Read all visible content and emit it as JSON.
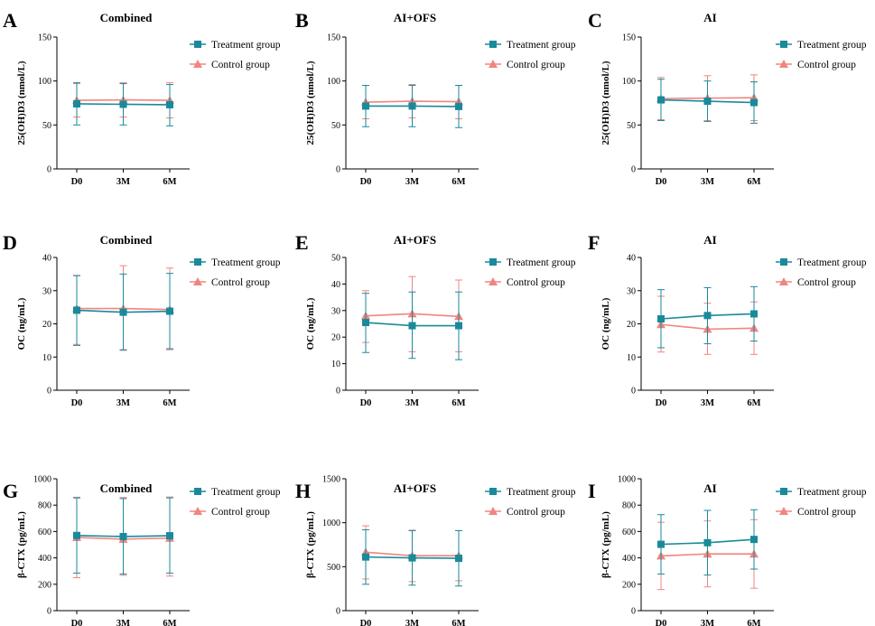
{
  "colors": {
    "treatment": "#1a8a9a",
    "control": "#f08580",
    "axis": "#000000"
  },
  "legend": {
    "treatment": "Treatment group",
    "control": "Control group"
  },
  "chart_data": [
    {
      "letter": "A",
      "title": "Combined",
      "type": "line",
      "categories": [
        "D0",
        "3M",
        "6M"
      ],
      "ylabel": "25(OH)D3 (nmol/L)",
      "ylim": [
        0,
        150
      ],
      "yticks": [
        "0",
        "50",
        "100",
        "150"
      ],
      "series": [
        {
          "name": "Treatment group",
          "values": [
            74,
            73.5,
            73
          ],
          "err_low": [
            50,
            50,
            49
          ],
          "err_high": [
            98,
            97,
            96
          ]
        },
        {
          "name": "Control group",
          "values": [
            78,
            78.5,
            78
          ],
          "err_low": [
            59,
            59,
            58
          ],
          "err_high": [
            97,
            98,
            98
          ]
        }
      ]
    },
    {
      "letter": "B",
      "title": "AI+OFS",
      "type": "line",
      "categories": [
        "D0",
        "3M",
        "6M"
      ],
      "ylabel": "25(OH)D3 (nmol/L)",
      "ylim": [
        0,
        150
      ],
      "yticks": [
        "0",
        "50",
        "100",
        "150"
      ],
      "series": [
        {
          "name": "Treatment group",
          "values": [
            71.5,
            71.5,
            71
          ],
          "err_low": [
            48,
            48,
            47
          ],
          "err_high": [
            95,
            95,
            95
          ]
        },
        {
          "name": "Control group",
          "values": [
            76,
            77,
            76.5
          ],
          "err_low": [
            57,
            58,
            57
          ],
          "err_high": [
            95,
            96,
            95
          ]
        }
      ]
    },
    {
      "letter": "C",
      "title": "AI",
      "type": "line",
      "categories": [
        "D0",
        "3M",
        "6M"
      ],
      "ylabel": "25(OH)D3 (nmol/L)",
      "ylim": [
        0,
        150
      ],
      "yticks": [
        "0",
        "50",
        "100",
        "150"
      ],
      "series": [
        {
          "name": "Treatment group",
          "values": [
            78.5,
            77,
            75.5
          ],
          "err_low": [
            55,
            54,
            52
          ],
          "err_high": [
            102,
            100,
            99
          ]
        },
        {
          "name": "Control group",
          "values": [
            80,
            80.5,
            81
          ],
          "err_low": [
            56,
            55,
            55
          ],
          "err_high": [
            104,
            106,
            107
          ]
        }
      ]
    },
    {
      "letter": "D",
      "title": "Combined",
      "type": "line",
      "categories": [
        "D0",
        "3M",
        "6M"
      ],
      "ylabel": "OC (ng/mL)",
      "ylim": [
        0,
        40
      ],
      "yticks": [
        "0",
        "10",
        "20",
        "30",
        "40"
      ],
      "series": [
        {
          "name": "Treatment group",
          "values": [
            24.1,
            23.5,
            23.8
          ],
          "err_low": [
            13.5,
            12.2,
            12.5
          ],
          "err_high": [
            34.5,
            35,
            35.2
          ]
        },
        {
          "name": "Control group",
          "values": [
            24.6,
            24.6,
            24.3
          ],
          "err_low": [
            13.8,
            12,
            12.2
          ],
          "err_high": [
            34.6,
            37.5,
            36.8
          ]
        }
      ]
    },
    {
      "letter": "E",
      "title": "AI+OFS",
      "type": "line",
      "categories": [
        "D0",
        "3M",
        "6M"
      ],
      "ylabel": "OC (ng/mL)",
      "ylim": [
        0,
        50
      ],
      "yticks": [
        "0",
        "10",
        "20",
        "30",
        "40",
        "50"
      ],
      "series": [
        {
          "name": "Treatment group",
          "values": [
            25.5,
            24.3,
            24.3
          ],
          "err_low": [
            14.2,
            12,
            11.5
          ],
          "err_high": [
            36.5,
            37,
            37
          ]
        },
        {
          "name": "Control group",
          "values": [
            28,
            28.8,
            27.8
          ],
          "err_low": [
            18,
            14.5,
            14.5
          ],
          "err_high": [
            37.5,
            42.8,
            41.5
          ]
        }
      ]
    },
    {
      "letter": "F",
      "title": "AI",
      "type": "line",
      "categories": [
        "D0",
        "3M",
        "6M"
      ],
      "ylabel": "OC (ng/mL)",
      "ylim": [
        0,
        40
      ],
      "yticks": [
        "0",
        "10",
        "20",
        "30",
        "40"
      ],
      "series": [
        {
          "name": "Treatment group",
          "values": [
            21.5,
            22.5,
            23
          ],
          "err_low": [
            12.8,
            14,
            14.8
          ],
          "err_high": [
            30.3,
            30.9,
            31.2
          ]
        },
        {
          "name": "Control group",
          "values": [
            19.8,
            18.4,
            18.7
          ],
          "err_low": [
            11.5,
            10.8,
            10.8
          ],
          "err_high": [
            28.3,
            26.2,
            26.6
          ]
        }
      ]
    },
    {
      "letter": "G",
      "title": "Combined",
      "type": "line",
      "categories": [
        "D0",
        "3M",
        "6M"
      ],
      "ylabel": "β-CTX (pg/mL)",
      "ylim": [
        0,
        1000
      ],
      "yticks": [
        "0",
        "200",
        "400",
        "600",
        "800",
        "1000"
      ],
      "series": [
        {
          "name": "Treatment group",
          "values": [
            570,
            562,
            568
          ],
          "err_low": [
            285,
            278,
            285
          ],
          "err_high": [
            855,
            850,
            855
          ]
        },
        {
          "name": "Control group",
          "values": [
            555,
            542,
            550
          ],
          "err_low": [
            250,
            268,
            262
          ],
          "err_high": [
            860,
            858,
            862
          ]
        }
      ]
    },
    {
      "letter": "H",
      "title": "AI+OFS",
      "type": "line",
      "categories": [
        "D0",
        "3M",
        "6M"
      ],
      "ylabel": "β-CTX (pg/mL)",
      "ylim": [
        0,
        1500
      ],
      "yticks": [
        "0",
        "500",
        "1000",
        "1500"
      ],
      "series": [
        {
          "name": "Treatment group",
          "values": [
            610,
            600,
            595
          ],
          "err_low": [
            300,
            290,
            280
          ],
          "err_high": [
            920,
            910,
            910
          ]
        },
        {
          "name": "Control group",
          "values": [
            665,
            625,
            625
          ],
          "err_low": [
            360,
            330,
            340
          ],
          "err_high": [
            965,
            915,
            910
          ]
        }
      ]
    },
    {
      "letter": "I",
      "title": "AI",
      "type": "line",
      "categories": [
        "D0",
        "3M",
        "6M"
      ],
      "ylabel": "β-CTX (pg/mL)",
      "ylim": [
        0,
        1000
      ],
      "yticks": [
        "0",
        "200",
        "400",
        "600",
        "800",
        "1000"
      ],
      "series": [
        {
          "name": "Treatment group",
          "values": [
            503,
            515,
            540
          ],
          "err_low": [
            278,
            270,
            315
          ],
          "err_high": [
            728,
            760,
            765
          ]
        },
        {
          "name": "Control group",
          "values": [
            415,
            430,
            430
          ],
          "err_low": [
            160,
            180,
            170
          ],
          "err_high": [
            670,
            680,
            690
          ]
        }
      ]
    }
  ]
}
